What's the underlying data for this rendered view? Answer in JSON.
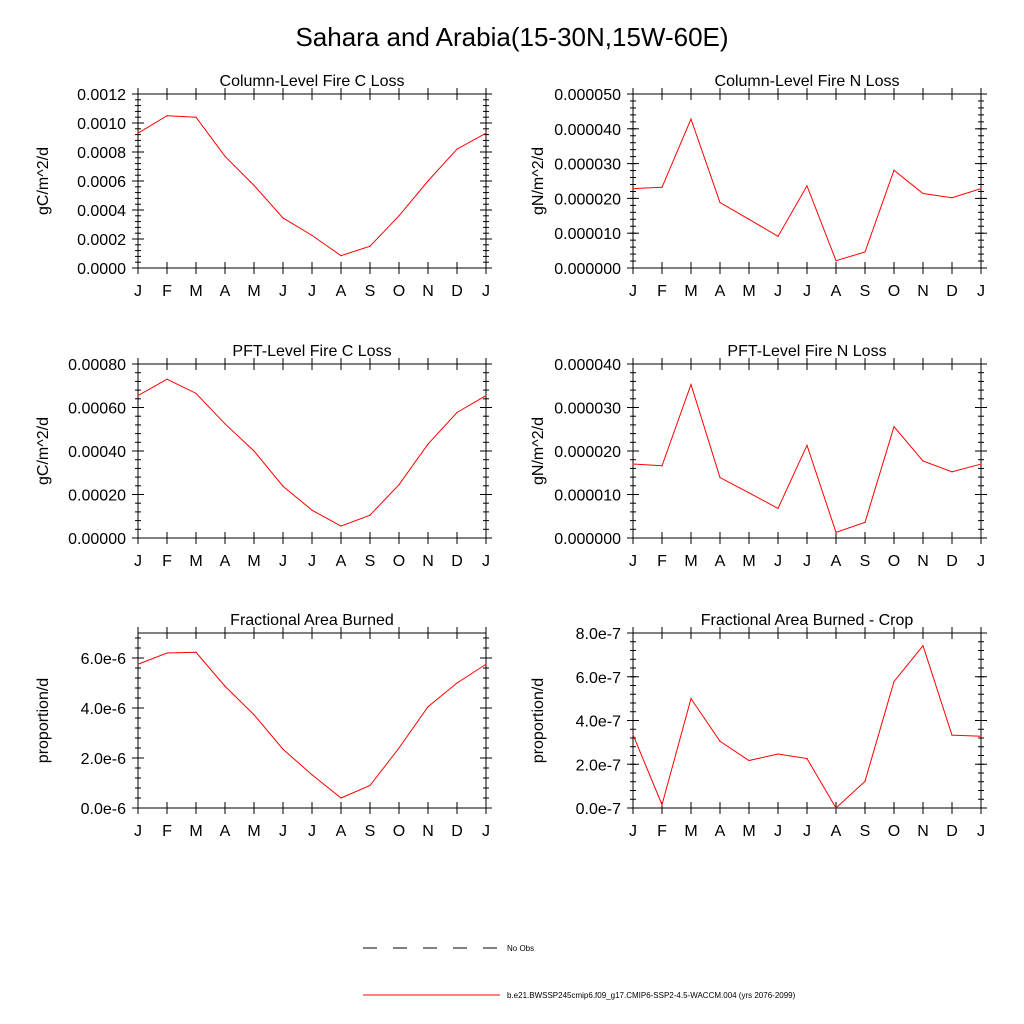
{
  "figure": {
    "title": "Sahara and Arabia(15-30N,15W-60E)"
  },
  "colors": {
    "series": "#ff0000",
    "axes": "#000000"
  },
  "legend": {
    "items": [
      {
        "label": "No Obs",
        "style": "dashed",
        "color": "#000000"
      },
      {
        "label": "b.e21.BWSSP245cmip6.f09_g17.CMIP6-SSP2-4.5-WACCM.004 (yrs 2076-2099)",
        "style": "solid",
        "color": "#ff0000"
      }
    ]
  },
  "chart_data": [
    {
      "type": "line",
      "title": "Column-Level Fire C Loss",
      "xlabel": "",
      "ylabel": "gC/m^2/d",
      "categories": [
        "J",
        "F",
        "M",
        "A",
        "M",
        "J",
        "J",
        "A",
        "S",
        "O",
        "N",
        "D",
        "J"
      ],
      "ylim": [
        0,
        0.0012
      ],
      "yticks": [
        0,
        0.0002,
        0.0004,
        0.0006,
        0.0008,
        0.001,
        0.0012
      ],
      "yticklabels": [
        "0.0000",
        "0.0002",
        "0.0004",
        "0.0006",
        "0.0008",
        "0.0010",
        "0.0012"
      ],
      "yminor": 4,
      "series": [
        {
          "values": [
            0.00093,
            0.00105,
            0.00104,
            0.00077,
            0.00057,
            0.000345,
            0.000225,
            8.5e-05,
            0.00015,
            0.00036,
            0.0006,
            0.00082,
            0.00093
          ]
        }
      ]
    },
    {
      "type": "line",
      "title": "Column-Level Fire N Loss",
      "xlabel": "",
      "ylabel": "gN/m^2/d",
      "categories": [
        "J",
        "F",
        "M",
        "A",
        "M",
        "J",
        "J",
        "A",
        "S",
        "O",
        "N",
        "D",
        "J"
      ],
      "ylim": [
        0,
        5e-05
      ],
      "yticks": [
        0,
        1e-05,
        2e-05,
        3e-05,
        4e-05,
        5e-05
      ],
      "yticklabels": [
        "0.000000",
        "0.000010",
        "0.000020",
        "0.000030",
        "0.000040",
        "0.000050"
      ],
      "yminor": 4,
      "series": [
        {
          "values": [
            2.28e-05,
            2.32e-05,
            4.28e-05,
            1.88e-05,
            1.4e-05,
            9.1e-06,
            2.36e-05,
            2.1e-06,
            4.6e-06,
            2.81e-05,
            2.14e-05,
            2.02e-05,
            2.28e-05
          ]
        }
      ]
    },
    {
      "type": "line",
      "title": "PFT-Level Fire C Loss",
      "xlabel": "",
      "ylabel": "gC/m^2/d",
      "categories": [
        "J",
        "F",
        "M",
        "A",
        "M",
        "J",
        "J",
        "A",
        "S",
        "O",
        "N",
        "D",
        "J"
      ],
      "ylim": [
        0,
        0.0008
      ],
      "yticks": [
        0,
        0.0002,
        0.0004,
        0.0006,
        0.0008
      ],
      "yticklabels": [
        "0.00000",
        "0.00020",
        "0.00040",
        "0.00060",
        "0.00080"
      ],
      "yminor": 4,
      "series": [
        {
          "values": [
            0.000655,
            0.00073,
            0.000665,
            0.000525,
            0.0004,
            0.000238,
            0.000128,
            5.5e-05,
            0.000105,
            0.000245,
            0.000432,
            0.000577,
            0.000655
          ]
        }
      ]
    },
    {
      "type": "line",
      "title": "PFT-Level Fire N Loss",
      "xlabel": "",
      "ylabel": "gN/m^2/d",
      "categories": [
        "J",
        "F",
        "M",
        "A",
        "M",
        "J",
        "J",
        "A",
        "S",
        "O",
        "N",
        "D",
        "J"
      ],
      "ylim": [
        0,
        4e-05
      ],
      "yticks": [
        0,
        1e-05,
        2e-05,
        3e-05,
        4e-05
      ],
      "yticklabels": [
        "0.000000",
        "0.000010",
        "0.000020",
        "0.000030",
        "0.000040"
      ],
      "yminor": 4,
      "series": [
        {
          "values": [
            1.7e-05,
            1.66e-05,
            3.53e-05,
            1.39e-05,
            1.04e-05,
            6.8e-06,
            2.13e-05,
            1.3e-06,
            3.6e-06,
            2.56e-05,
            1.77e-05,
            1.52e-05,
            1.7e-05
          ]
        }
      ]
    },
    {
      "type": "line",
      "title": "Fractional Area Burned",
      "xlabel": "",
      "ylabel": "proportion/d",
      "categories": [
        "J",
        "F",
        "M",
        "A",
        "M",
        "J",
        "J",
        "A",
        "S",
        "O",
        "N",
        "D",
        "J"
      ],
      "ylim": [
        0,
        7e-06
      ],
      "yticks": [
        0,
        2e-06,
        4e-06,
        6e-06
      ],
      "yticklabels": [
        "0.0e-6",
        "2.0e-6",
        "4.0e-6",
        "6.0e-6"
      ],
      "yminor": 4,
      "series": [
        {
          "values": [
            5.75e-06,
            6.2e-06,
            6.23e-06,
            4.87e-06,
            3.73e-06,
            2.35e-06,
            1.33e-06,
            4e-07,
            9e-07,
            2.4e-06,
            4.05e-06,
            5e-06,
            5.75e-06
          ]
        }
      ]
    },
    {
      "type": "line",
      "title": "Fractional Area Burned - Crop",
      "xlabel": "",
      "ylabel": "proportion/d",
      "categories": [
        "J",
        "F",
        "M",
        "A",
        "M",
        "J",
        "J",
        "A",
        "S",
        "O",
        "N",
        "D",
        "J"
      ],
      "ylim": [
        0,
        8e-07
      ],
      "yticks": [
        0,
        2e-07,
        4e-07,
        6e-07,
        8e-07
      ],
      "yticklabels": [
        "0.0e-7",
        "2.0e-7",
        "4.0e-7",
        "6.0e-7",
        "8.0e-7"
      ],
      "yminor": 4,
      "series": [
        {
          "values": [
            3.35e-07,
            1.5e-08,
            5e-07,
            3.05e-07,
            2.17e-07,
            2.47e-07,
            2.26e-07,
            0,
            1.22e-07,
            5.78e-07,
            7.42e-07,
            3.33e-07,
            3.28e-07
          ]
        }
      ]
    }
  ]
}
